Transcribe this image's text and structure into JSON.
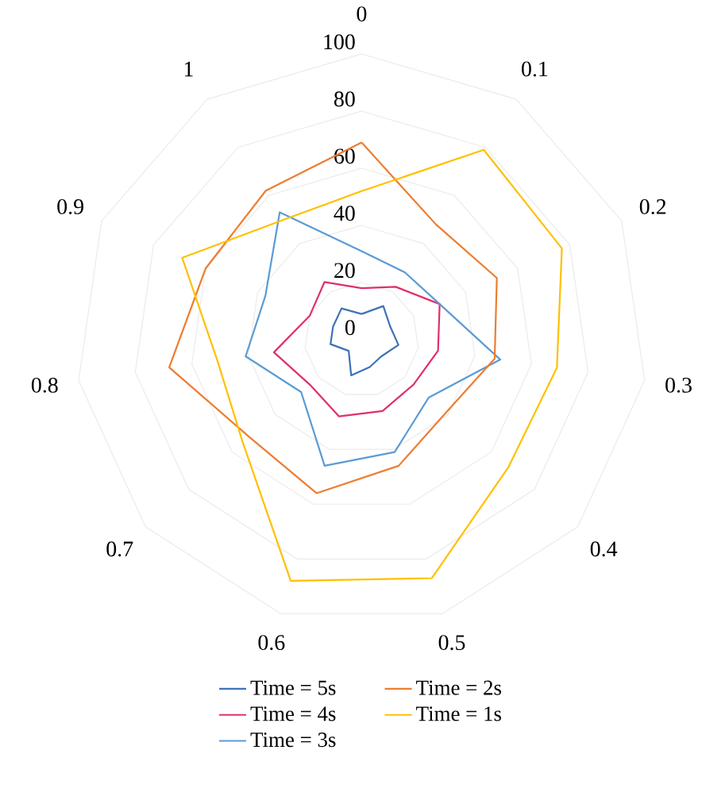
{
  "chart_data": {
    "type": "radar",
    "categories": [
      "0",
      "0.1",
      "0.2",
      "0.3",
      "0.4",
      "0.5",
      "0.6",
      "0.7",
      "0.8",
      "0.9",
      "1"
    ],
    "ylim": [
      0,
      100
    ],
    "yticks": [
      0,
      20,
      40,
      60,
      80,
      100
    ],
    "grid": true,
    "legend": "bottom",
    "marker": "none",
    "line_style": "solid",
    "series": [
      {
        "name": "Time = 5s",
        "color": "#3f72b8",
        "values": [
          9,
          14,
          11,
          13,
          9,
          10,
          13,
          6,
          11,
          11,
          13
        ]
      },
      {
        "name": "Time = 4s",
        "color": "#e0306a",
        "values": [
          18,
          22,
          30,
          27,
          24,
          26,
          28,
          24,
          31,
          20,
          24
        ]
      },
      {
        "name": "Time = 3s",
        "color": "#5b9bd5",
        "values": [
          31,
          28,
          30,
          49,
          31,
          41,
          46,
          28,
          41,
          37,
          53
        ]
      },
      {
        "name": "Time = 2s",
        "color": "#ed7d31",
        "values": [
          69,
          48,
          52,
          47,
          39,
          46,
          56,
          52,
          68,
          60,
          62
        ]
      },
      {
        "name": "Time = 1s",
        "color": "#ffc000",
        "values": [
          52,
          79,
          77,
          69,
          68,
          87,
          88,
          55,
          51,
          69,
          50
        ]
      }
    ]
  }
}
